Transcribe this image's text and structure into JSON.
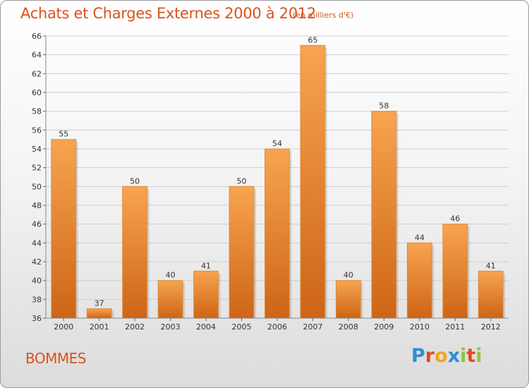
{
  "header": {
    "title": "Achats et Charges Externes 2000 à 2012",
    "subtitle": "(en milliers d'€)"
  },
  "footer": {
    "commune": "BOMMES",
    "logo_text": "Proxiti",
    "logo_letters": [
      {
        "char": "P",
        "color": "#2c8fd3"
      },
      {
        "char": "r",
        "color": "#e8481c"
      },
      {
        "char": "o",
        "color": "#f2a518"
      },
      {
        "char": "x",
        "color": "#2c8fd3"
      },
      {
        "char": "i",
        "color": "#8cc63e"
      },
      {
        "char": "t",
        "color": "#e8481c"
      },
      {
        "char": "i",
        "color": "#8cc63e"
      }
    ]
  },
  "colors": {
    "accent": "#d9531e",
    "bar_top": "#f7a450",
    "bar_bottom": "#cd6516",
    "grid": "#cfcfcf"
  },
  "chart_data": {
    "type": "bar",
    "title": "Achats et Charges Externes 2000 à 2012",
    "subtitle": "(en milliers d'€)",
    "categories": [
      "2000",
      "2001",
      "2002",
      "2003",
      "2004",
      "2005",
      "2006",
      "2007",
      "2008",
      "2009",
      "2010",
      "2011",
      "2012"
    ],
    "values": [
      55,
      37,
      50,
      40,
      41,
      50,
      54,
      65,
      40,
      58,
      44,
      46,
      41
    ],
    "ylim": [
      36,
      66
    ],
    "yticks": [
      36,
      38,
      40,
      42,
      44,
      46,
      48,
      50,
      52,
      54,
      56,
      58,
      60,
      62,
      64,
      66
    ],
    "grid": true,
    "xlabel": "",
    "ylabel": ""
  }
}
